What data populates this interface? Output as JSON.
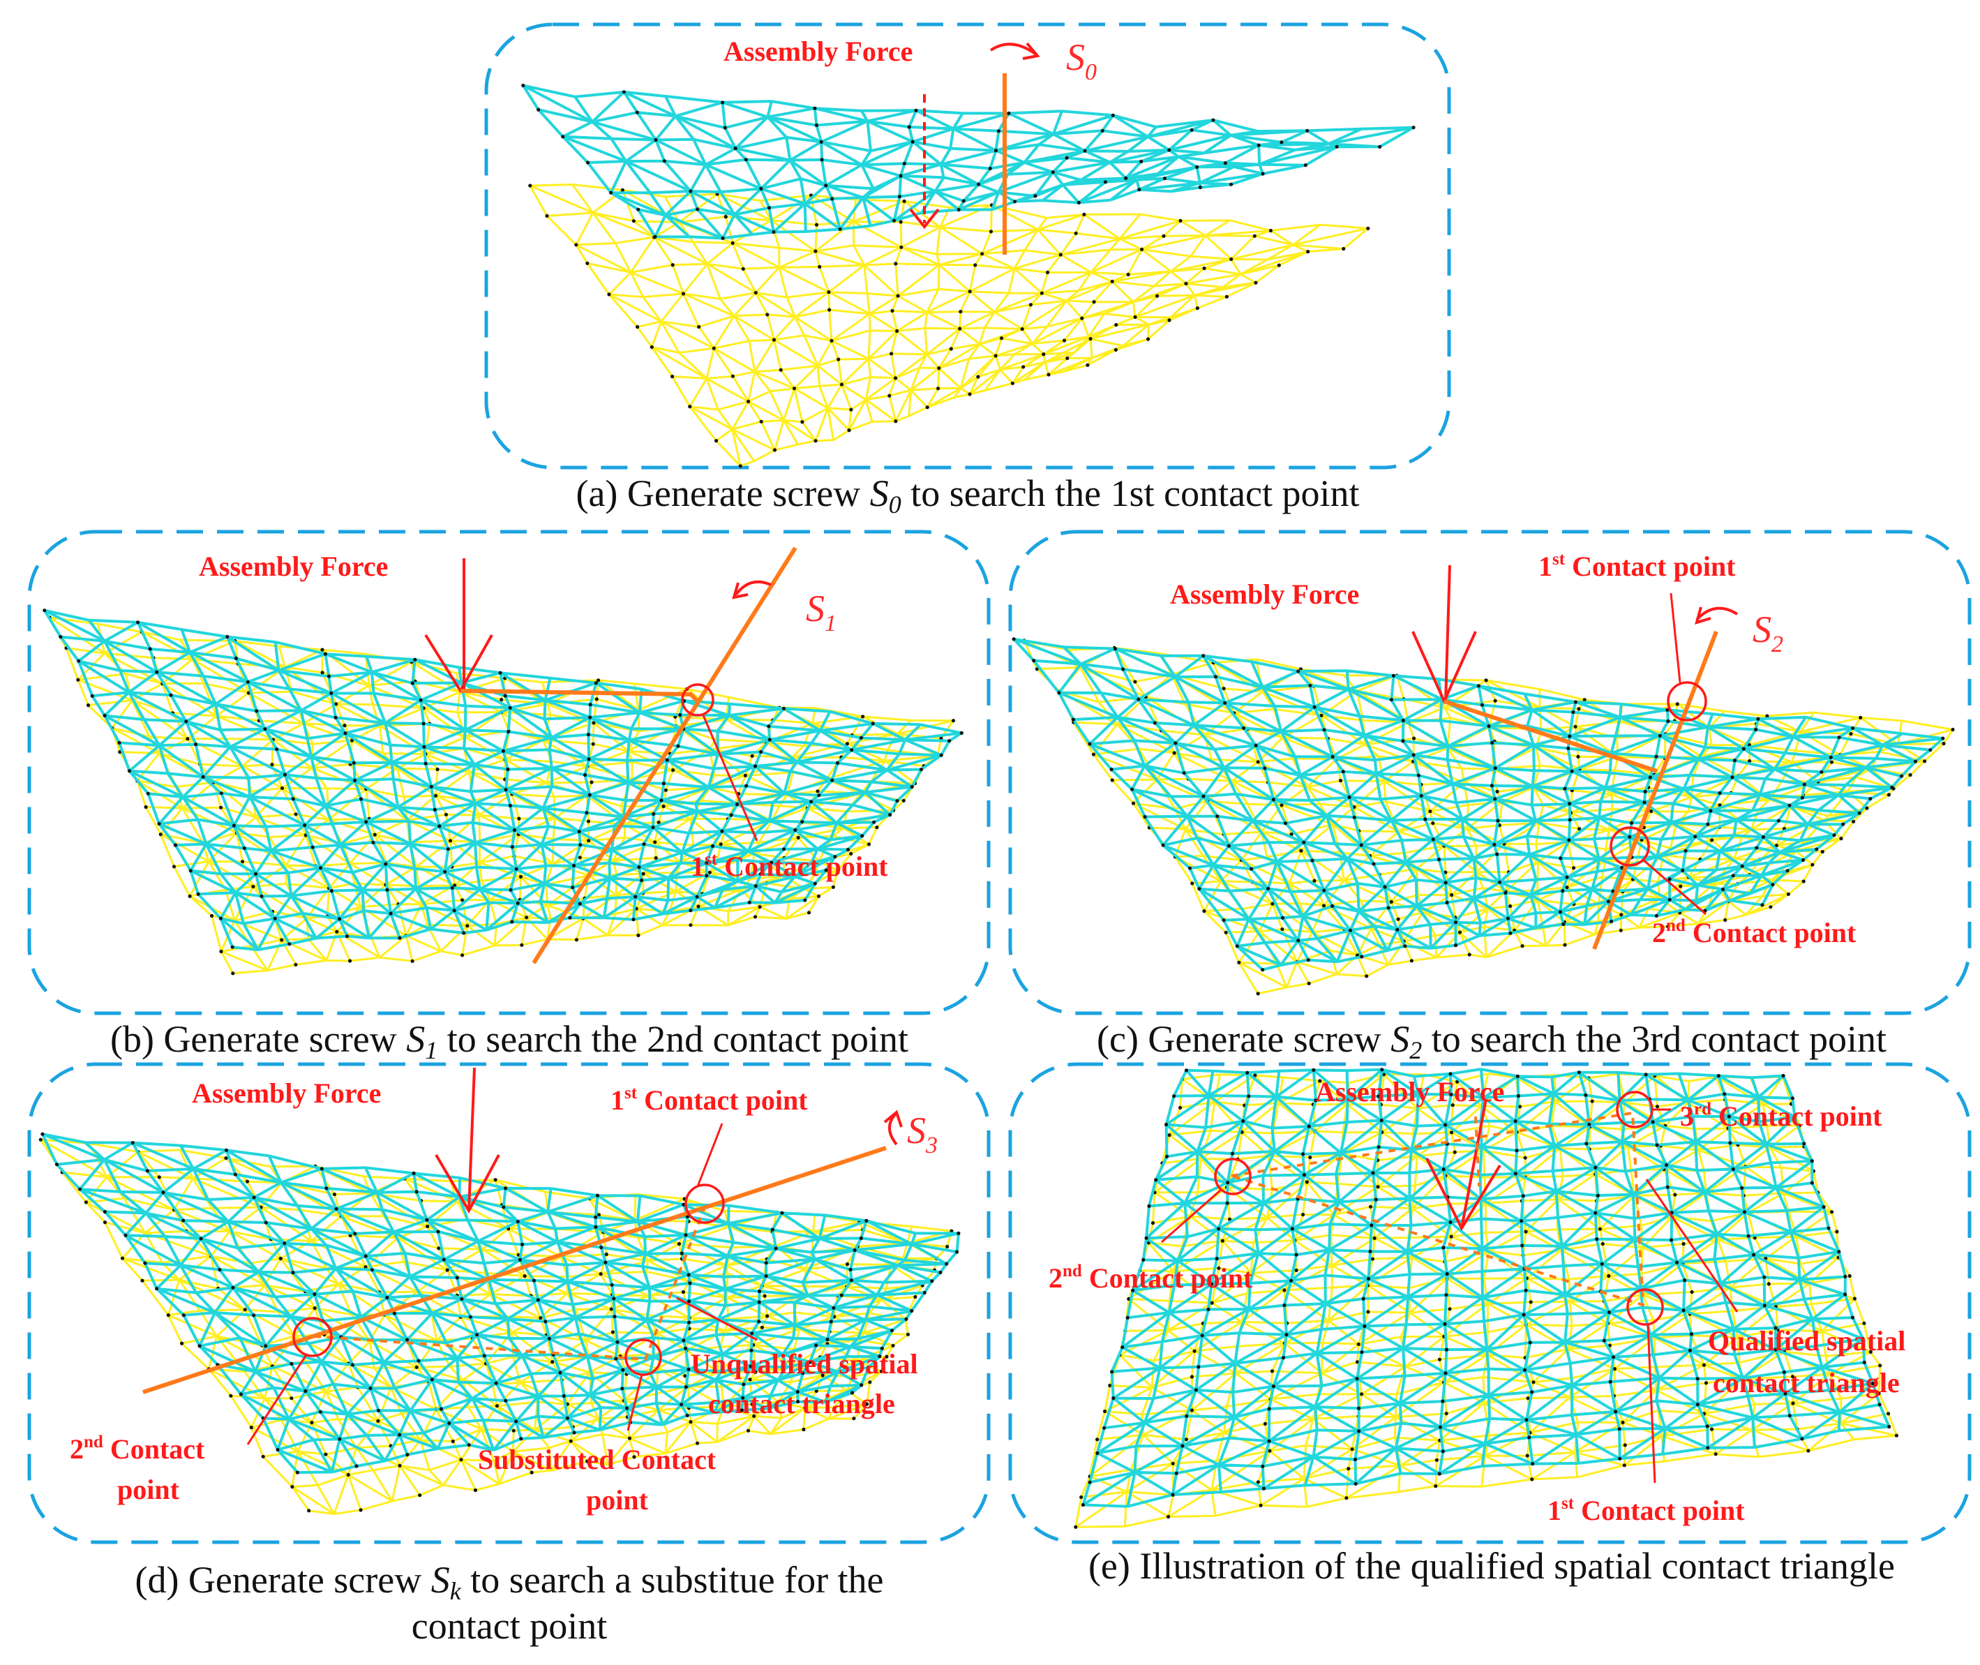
{
  "colors": {
    "frame": "#1ba3e0",
    "mesh_lower": "#ffee22",
    "mesh_upper": "#22d6dc",
    "labels": "#ff1a1a",
    "screw_axis": "#ff7a1a",
    "nodes": "#111111"
  },
  "panels": {
    "a": {
      "caption_pre": "(a) Generate screw ",
      "caption_sym": "S",
      "caption_sub": "0",
      "caption_post": " to search the 1st contact point",
      "screw_sym": "S",
      "screw_sub": "0",
      "assembly_force": "Assembly Force"
    },
    "b": {
      "caption_pre": "(b) Generate screw ",
      "caption_sym": "S",
      "caption_sub": "1",
      "caption_post": " to search the 2nd contact point",
      "screw_sym": "S",
      "screw_sub": "1",
      "assembly_force": "Assembly Force",
      "contact1_num": "1",
      "contact1_sup": "st",
      "contact1_text": " Contact point"
    },
    "c": {
      "caption_pre": "(c) Generate screw ",
      "caption_sym": "S",
      "caption_sub": "2",
      "caption_post": " to search the 3rd contact point",
      "screw_sym": "S",
      "screw_sub": "2",
      "assembly_force": "Assembly Force",
      "contact1_num": "1",
      "contact1_sup": "st",
      "contact1_text": " Contact point",
      "contact2_num": "2",
      "contact2_sup": "nd",
      "contact2_text": " Contact point"
    },
    "d": {
      "caption_pre": "(d) Generate screw ",
      "caption_sym": "S",
      "caption_sub": "k",
      "caption_post": " to search a substitue for the",
      "caption_line2": "contact point",
      "screw_sym": "S",
      "screw_sub": "3",
      "assembly_force": "Assembly Force",
      "contact1_num": "1",
      "contact1_sup": "st",
      "contact1_text": " Contact point",
      "contact2_num": "2",
      "contact2_sup": "nd",
      "contact2_text": " Contact",
      "contact2_line2": "point",
      "unqualified_line1": "Unqualified spatial",
      "unqualified_line2": "contact triangle",
      "substituted_line1": "Substituted Contact",
      "substituted_line2": "point"
    },
    "e": {
      "caption": "(e) Illustration of the qualified spatial contact triangle",
      "assembly_force": "Assembly Force",
      "contact1_num": "1",
      "contact1_sup": "st",
      "contact1_text": " Contact point",
      "contact2_num": "2",
      "contact2_sup": "nd",
      "contact2_text": " Contact point",
      "contact3_num": "3",
      "contact3_sup": "rd",
      "contact3_text": " Contact point",
      "qualified_line1": "Qualified spatial",
      "qualified_line2": "contact triangle"
    }
  }
}
